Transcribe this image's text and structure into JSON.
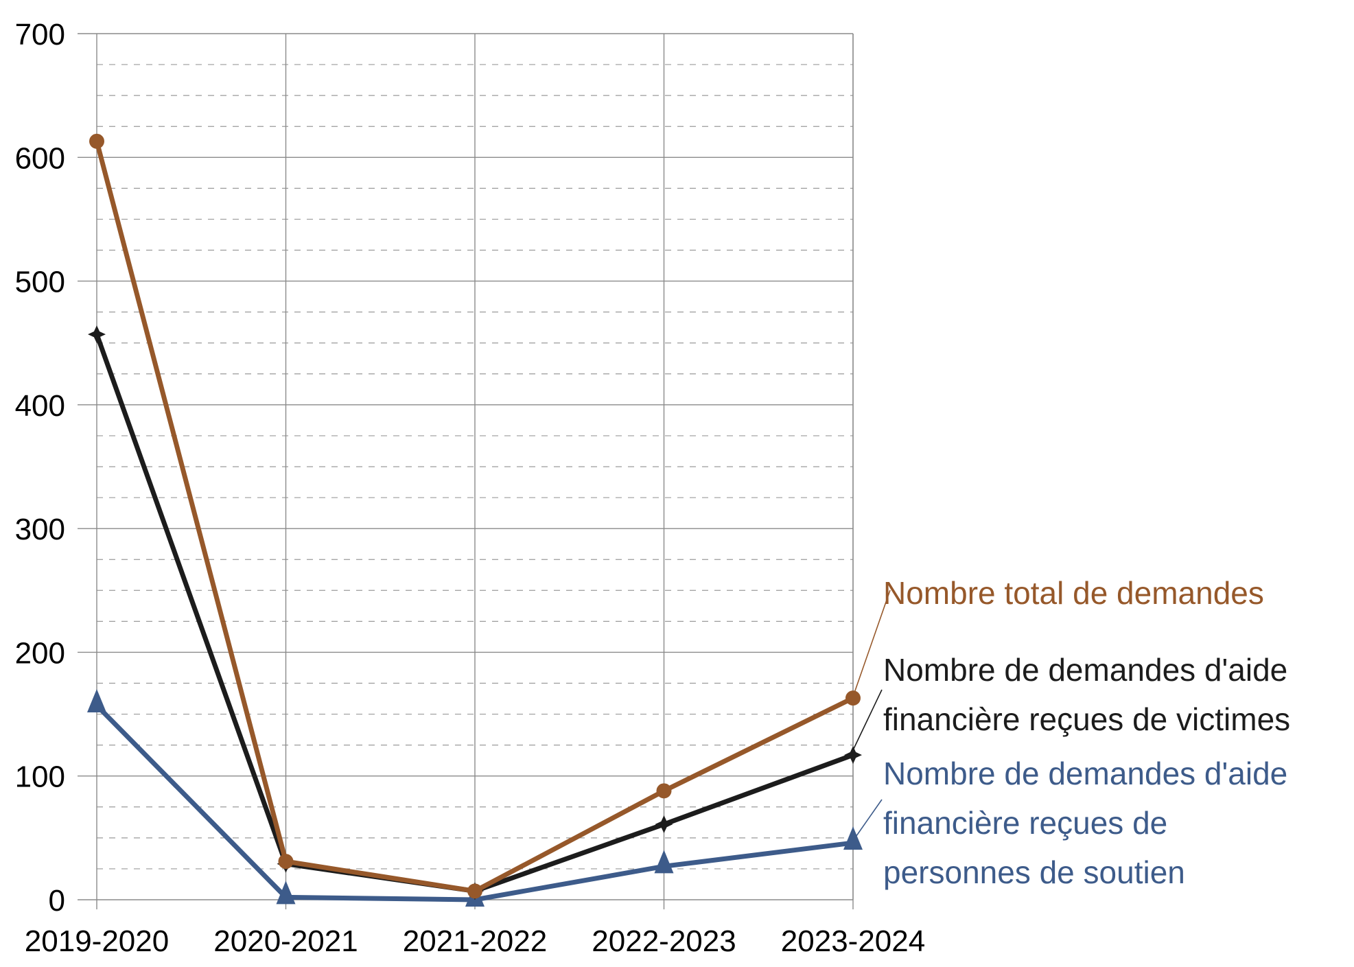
{
  "chart_data": {
    "type": "line",
    "title": "",
    "xlabel": "",
    "ylabel": "",
    "categories": [
      "2019-2020",
      "2020-2021",
      "2021-2022",
      "2022-2023",
      "2023-2024"
    ],
    "ylim": [
      0,
      700
    ],
    "yticks": [
      0,
      100,
      200,
      300,
      400,
      500,
      600,
      700
    ],
    "grid": true,
    "legend": "direct labels at right",
    "series": [
      {
        "name": "Nombre total de demandes",
        "label_lines": [
          "Nombre total de demandes"
        ],
        "values": [
          613,
          31,
          7,
          88,
          163
        ],
        "color": "#96582a",
        "marker": "circle"
      },
      {
        "name": "Nombre de demandes d'aide financière reçues de victimes",
        "label_lines": [
          "Nombre de demandes d'aide",
          "financière reçues de victimes"
        ],
        "values": [
          457,
          29,
          7,
          61,
          117
        ],
        "color": "#1c1c1c",
        "marker": "star"
      },
      {
        "name": "Nombre de demandes d'aide financière reçues de personnes de soutien",
        "label_lines": [
          "Nombre de demandes d'aide",
          "financière reçues de",
          "personnes de soutien"
        ],
        "values": [
          157,
          2,
          0,
          27,
          46
        ],
        "color": "#3d5b8a",
        "marker": "triangle"
      }
    ]
  }
}
